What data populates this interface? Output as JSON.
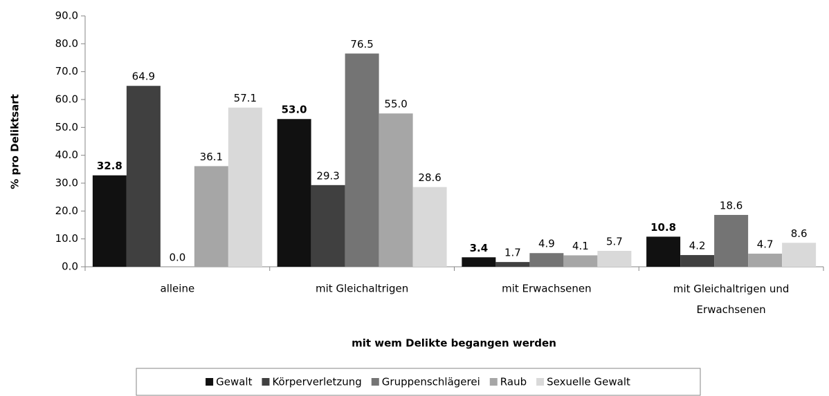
{
  "chart_data": {
    "type": "bar",
    "ylabel": "% pro Deliktsart",
    "xlabel": "mit wem Delikte begangen werden",
    "categories": [
      "alleine",
      "mit Gleichaltrigen",
      "mit Erwachsenen",
      "mit Gleichaltrigen und Erwachsenen"
    ],
    "series": [
      {
        "name": "Gewalt",
        "color": "#111111",
        "label_bold": true,
        "values": [
          32.8,
          53,
          3.4,
          10.8
        ],
        "value_labels": [
          "32.8",
          "53.0",
          "3.4",
          "10.8"
        ]
      },
      {
        "name": "Körperverletzung",
        "color": "#404040",
        "values": [
          64.9,
          29.3,
          1.7,
          4.2
        ],
        "value_labels": [
          "64.9",
          "29.3",
          "1.7",
          "4.2"
        ]
      },
      {
        "name": "Gruppenschlägerei",
        "color": "#747474",
        "values": [
          0,
          76.5,
          4.9,
          18.6
        ],
        "value_labels": [
          "0.0",
          "76.5",
          "4.9",
          "18.6"
        ]
      },
      {
        "name": "Raub",
        "color": "#a6a6a6",
        "values": [
          36.1,
          55,
          4.1,
          4.7
        ],
        "value_labels": [
          "36.1",
          "55.0",
          "4.1",
          "4.7"
        ]
      },
      {
        "name": "Sexuelle Gewalt",
        "color": "#d9d9d9",
        "values": [
          57.1,
          28.6,
          5.7,
          8.6
        ],
        "value_labels": [
          "57.1",
          "28.6",
          "5.7",
          "8.6"
        ]
      }
    ],
    "ylim": [
      0,
      90
    ],
    "yticks": [
      {
        "value": 0,
        "label": "0.0"
      },
      {
        "value": 10,
        "label": "10.0"
      },
      {
        "value": 20,
        "label": "20.0"
      },
      {
        "value": 30,
        "label": "30.0"
      },
      {
        "value": 40,
        "label": "40.0"
      },
      {
        "value": 50,
        "label": "50.0"
      },
      {
        "value": 60,
        "label": "60.0"
      },
      {
        "value": 70,
        "label": "70.0"
      },
      {
        "value": 80,
        "label": "80.0"
      },
      {
        "value": 90,
        "label": "90.0"
      }
    ],
    "grid": false,
    "legend": "bottom"
  }
}
